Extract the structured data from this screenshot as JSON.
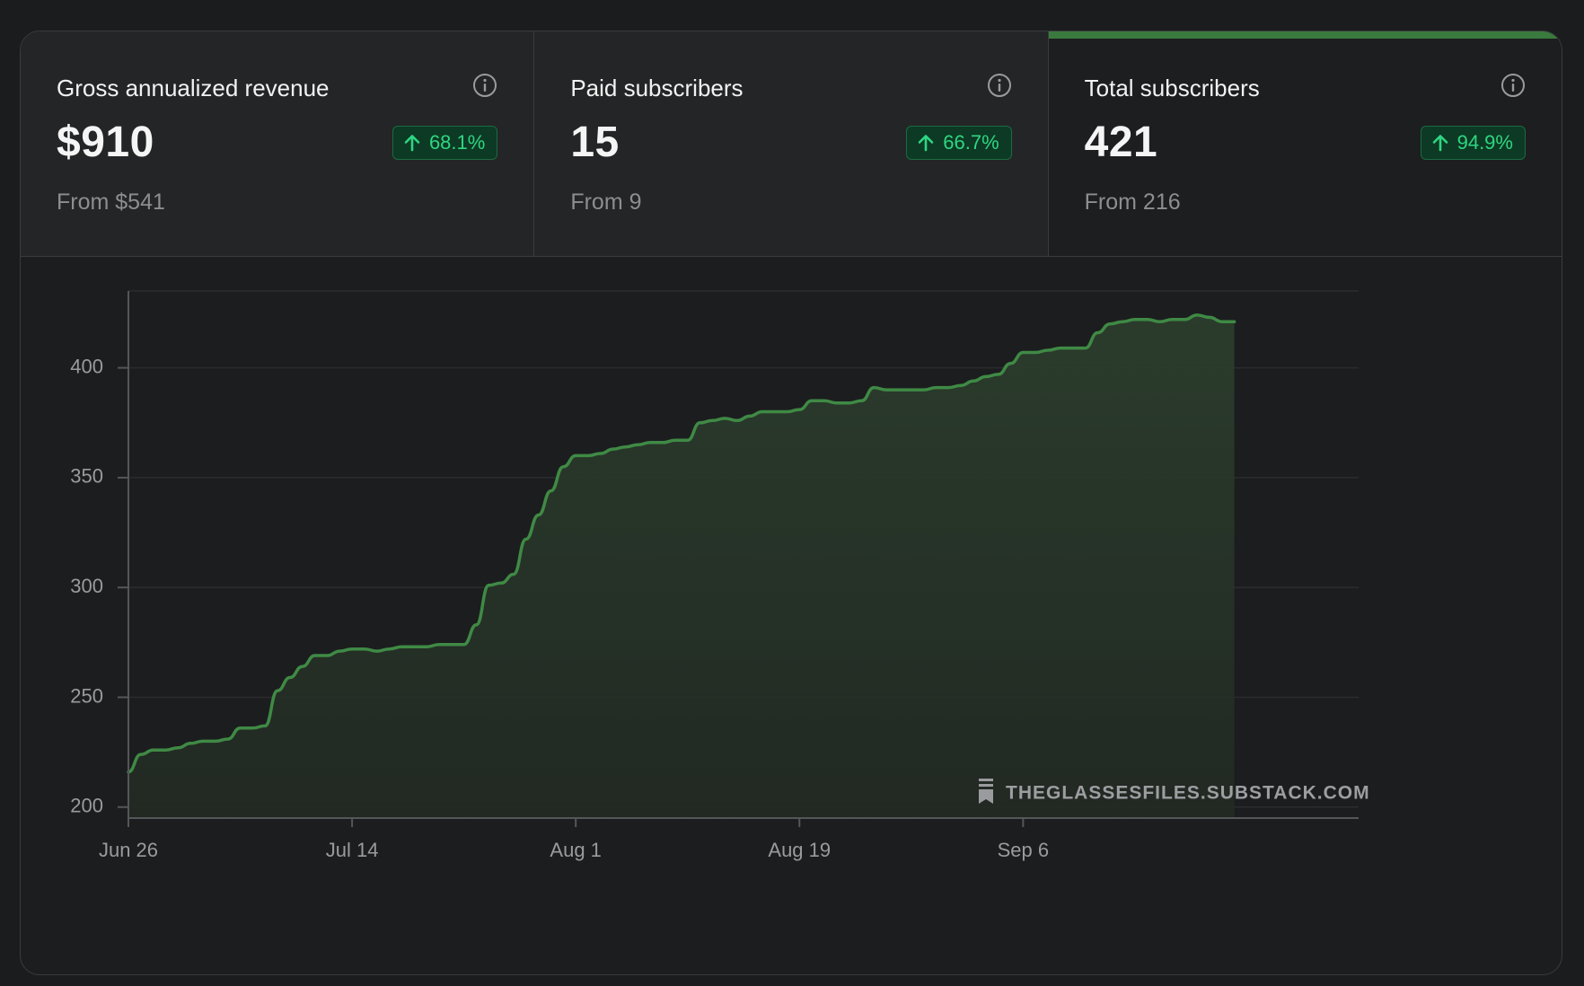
{
  "metrics": [
    {
      "label": "Gross annualized revenue",
      "value": "$910",
      "change": "68.1%",
      "from": "From $541",
      "active": false
    },
    {
      "label": "Paid subscribers",
      "value": "15",
      "change": "66.7%",
      "from": "From 9",
      "active": false
    },
    {
      "label": "Total subscribers",
      "value": "421",
      "change": "94.9%",
      "from": "From 216",
      "active": true
    }
  ],
  "watermark": "THEGLASSESFILES.SUBSTACK.COM",
  "colors": {
    "line": "#3f8a45",
    "badge_text": "#2ed682",
    "badge_bg": "#0d3a24"
  },
  "chart_data": {
    "type": "area",
    "title": "Total subscribers",
    "xlabel": "",
    "ylabel": "",
    "ylim": [
      195,
      435
    ],
    "xlim": [
      0,
      99
    ],
    "yticks": [
      200,
      250,
      300,
      350,
      400
    ],
    "xticks": [
      {
        "day": 0,
        "label": "Jun 26"
      },
      {
        "day": 18,
        "label": "Jul 14"
      },
      {
        "day": 36,
        "label": "Aug 1"
      },
      {
        "day": 54,
        "label": "Aug 19"
      },
      {
        "day": 72,
        "label": "Sep 6"
      }
    ],
    "series": [
      {
        "name": "Total subscribers",
        "points": [
          [
            0,
            216
          ],
          [
            1,
            224
          ],
          [
            2,
            226
          ],
          [
            3,
            226
          ],
          [
            4,
            227
          ],
          [
            5,
            229
          ],
          [
            6,
            230
          ],
          [
            7,
            230
          ],
          [
            8,
            231
          ],
          [
            9,
            236
          ],
          [
            10,
            236
          ],
          [
            11,
            237
          ],
          [
            12,
            253
          ],
          [
            13,
            259
          ],
          [
            14,
            264
          ],
          [
            15,
            269
          ],
          [
            16,
            269
          ],
          [
            17,
            271
          ],
          [
            18,
            272
          ],
          [
            19,
            272
          ],
          [
            20,
            271
          ],
          [
            21,
            272
          ],
          [
            22,
            273
          ],
          [
            23,
            273
          ],
          [
            24,
            273
          ],
          [
            25,
            274
          ],
          [
            26,
            274
          ],
          [
            27,
            274
          ],
          [
            28,
            283
          ],
          [
            29,
            301
          ],
          [
            30,
            302
          ],
          [
            31,
            306
          ],
          [
            32,
            322
          ],
          [
            33,
            333
          ],
          [
            34,
            344
          ],
          [
            35,
            355
          ],
          [
            36,
            360
          ],
          [
            37,
            360
          ],
          [
            38,
            361
          ],
          [
            39,
            363
          ],
          [
            40,
            364
          ],
          [
            41,
            365
          ],
          [
            42,
            366
          ],
          [
            43,
            366
          ],
          [
            44,
            367
          ],
          [
            45,
            367
          ],
          [
            46,
            375
          ],
          [
            47,
            376
          ],
          [
            48,
            377
          ],
          [
            49,
            376
          ],
          [
            50,
            378
          ],
          [
            51,
            380
          ],
          [
            52,
            380
          ],
          [
            53,
            380
          ],
          [
            54,
            381
          ],
          [
            55,
            385
          ],
          [
            56,
            385
          ],
          [
            57,
            384
          ],
          [
            58,
            384
          ],
          [
            59,
            385
          ],
          [
            60,
            391
          ],
          [
            61,
            390
          ],
          [
            62,
            390
          ],
          [
            63,
            390
          ],
          [
            64,
            390
          ],
          [
            65,
            391
          ],
          [
            66,
            391
          ],
          [
            67,
            392
          ],
          [
            68,
            394
          ],
          [
            69,
            396
          ],
          [
            70,
            397
          ],
          [
            71,
            402
          ],
          [
            72,
            407
          ],
          [
            73,
            407
          ],
          [
            74,
            408
          ],
          [
            75,
            409
          ],
          [
            76,
            409
          ],
          [
            77,
            409
          ],
          [
            78,
            416
          ],
          [
            79,
            420
          ],
          [
            80,
            421
          ],
          [
            81,
            422
          ],
          [
            82,
            422
          ],
          [
            83,
            421
          ],
          [
            84,
            422
          ],
          [
            85,
            422
          ],
          [
            86,
            424
          ],
          [
            87,
            423
          ],
          [
            88,
            421
          ],
          [
            89,
            421
          ]
        ]
      }
    ]
  }
}
